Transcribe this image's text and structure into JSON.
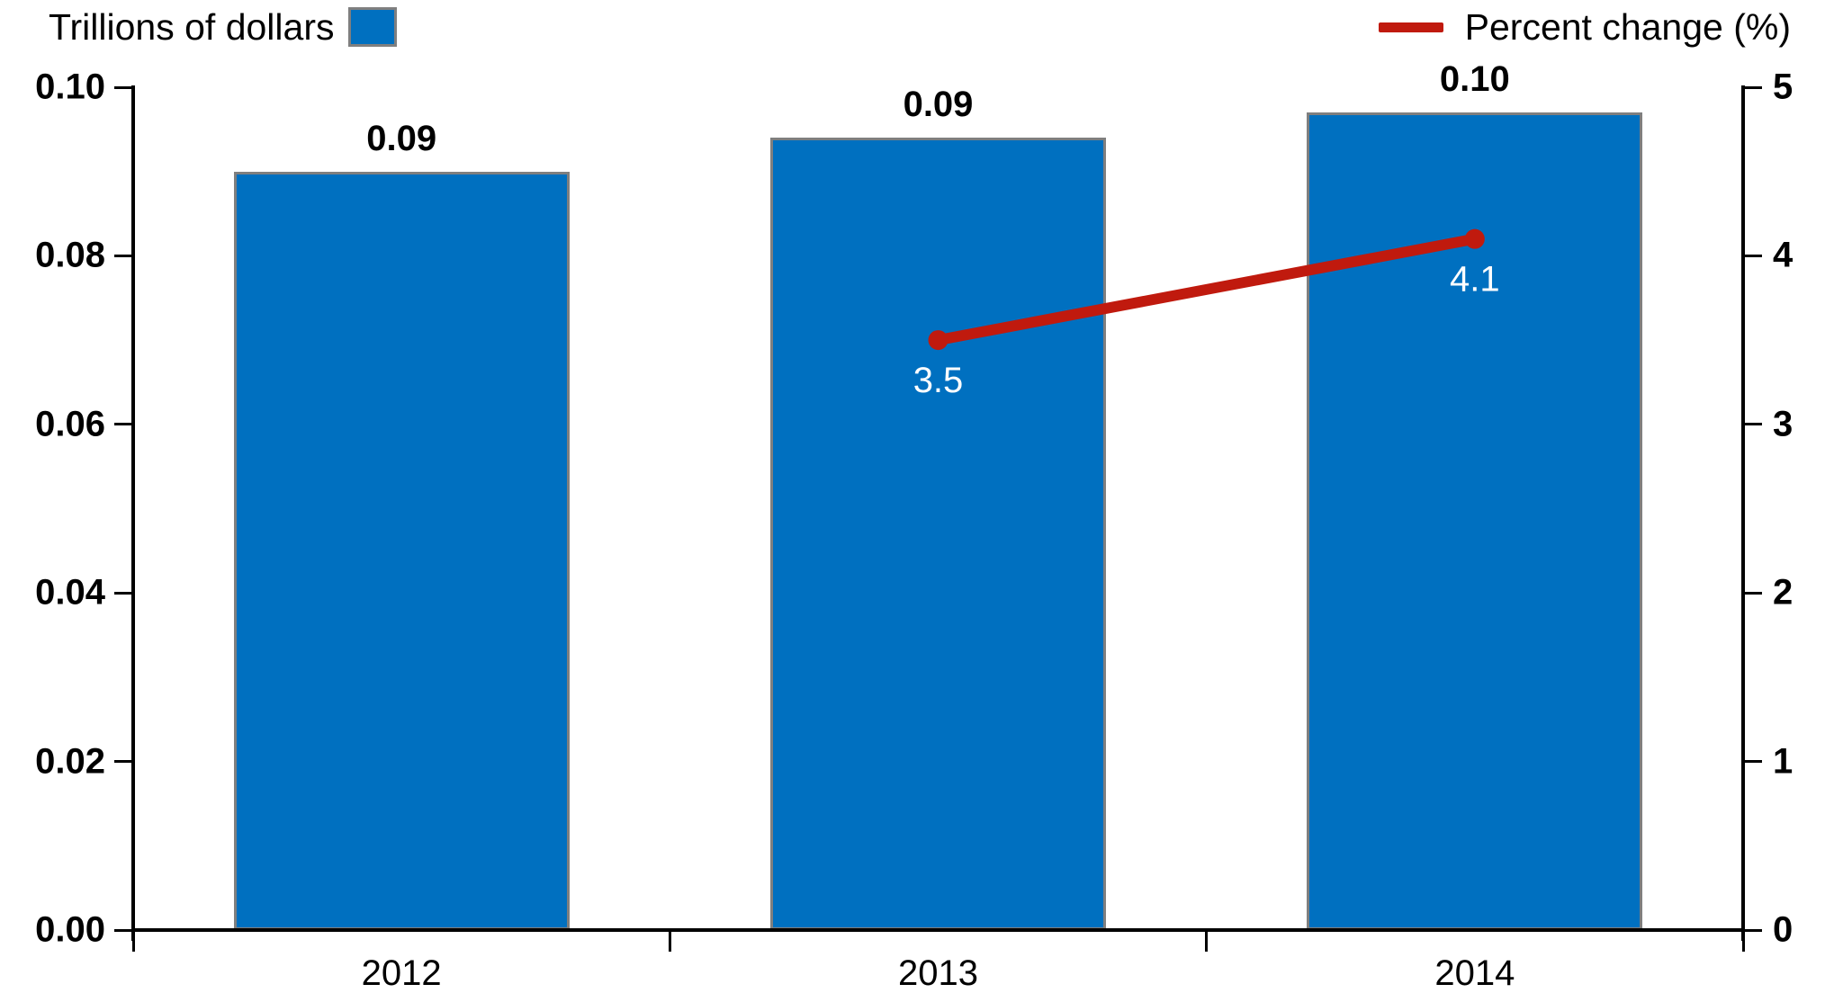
{
  "chart_data": {
    "type": "bar",
    "subtype": "bar+line-dual-axis",
    "title": "",
    "categories": [
      "2012",
      "2013",
      "2014"
    ],
    "series": [
      {
        "name": "Trillions of dollars",
        "type": "bar",
        "axis": "left",
        "values": [
          0.09,
          0.094,
          0.097
        ],
        "labels": [
          "0.09",
          "0.09",
          "0.10"
        ],
        "color": "#0070C0",
        "border_color": "#7f7f7f",
        "label_color": "#000000"
      },
      {
        "name": "Percent change (%)",
        "type": "line",
        "axis": "right",
        "values": [
          null,
          3.5,
          4.1
        ],
        "labels": [
          null,
          "3.5",
          "4.1"
        ],
        "color": "#C01A0E",
        "label_color": "#ffffff"
      }
    ],
    "left_axis": {
      "min": 0,
      "max": 0.1,
      "tick_labels": [
        "0.00",
        "0.02",
        "0.04",
        "0.06",
        "0.08",
        "0.10"
      ]
    },
    "right_axis": {
      "min": 0,
      "max": 5,
      "tick_labels": [
        "0",
        "1",
        "2",
        "3",
        "4",
        "5"
      ]
    },
    "legend_position": "top",
    "grid": false,
    "background": "#ffffff",
    "axis_color": "#000000"
  }
}
